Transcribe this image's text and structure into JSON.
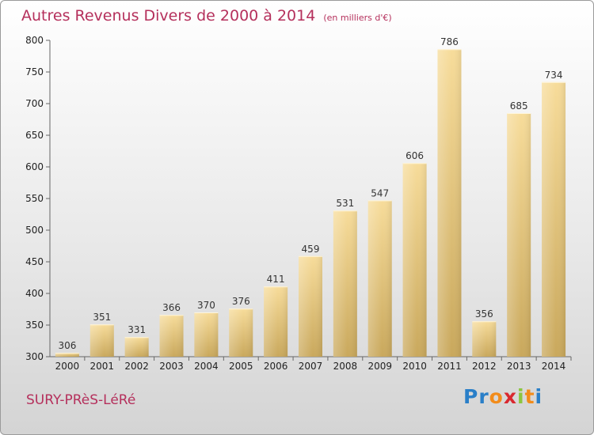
{
  "title": "Autres Revenus Divers de 2000 à 2014",
  "title_unit": "(en milliers d'€)",
  "commune": "SURY-PRèS-LéRé",
  "brand": {
    "letters": [
      "P",
      "r",
      "o",
      "x",
      "i",
      "t",
      "i"
    ],
    "colors": [
      "#2a7fc8",
      "#2a7fc8",
      "#f28c1b",
      "#d9282f",
      "#8cc63f",
      "#f28c1b",
      "#2a7fc8"
    ]
  },
  "colors": {
    "title": "#b5305c",
    "bar_light": "#f7dc9a",
    "bar_dark": "#c9a85c",
    "axis": "#666666"
  },
  "chart_data": {
    "type": "bar",
    "title": "Autres Revenus Divers de 2000 à 2014",
    "categories": [
      "2000",
      "2001",
      "2002",
      "2003",
      "2004",
      "2005",
      "2006",
      "2007",
      "2008",
      "2009",
      "2010",
      "2011",
      "2012",
      "2013",
      "2014"
    ],
    "values": [
      306,
      351,
      331,
      366,
      370,
      376,
      411,
      459,
      531,
      547,
      606,
      786,
      356,
      685,
      734
    ],
    "ylim": [
      300,
      800
    ],
    "yticks": [
      300,
      350,
      400,
      450,
      500,
      550,
      600,
      650,
      700,
      750,
      800
    ],
    "grid": false,
    "data_labels": true
  }
}
